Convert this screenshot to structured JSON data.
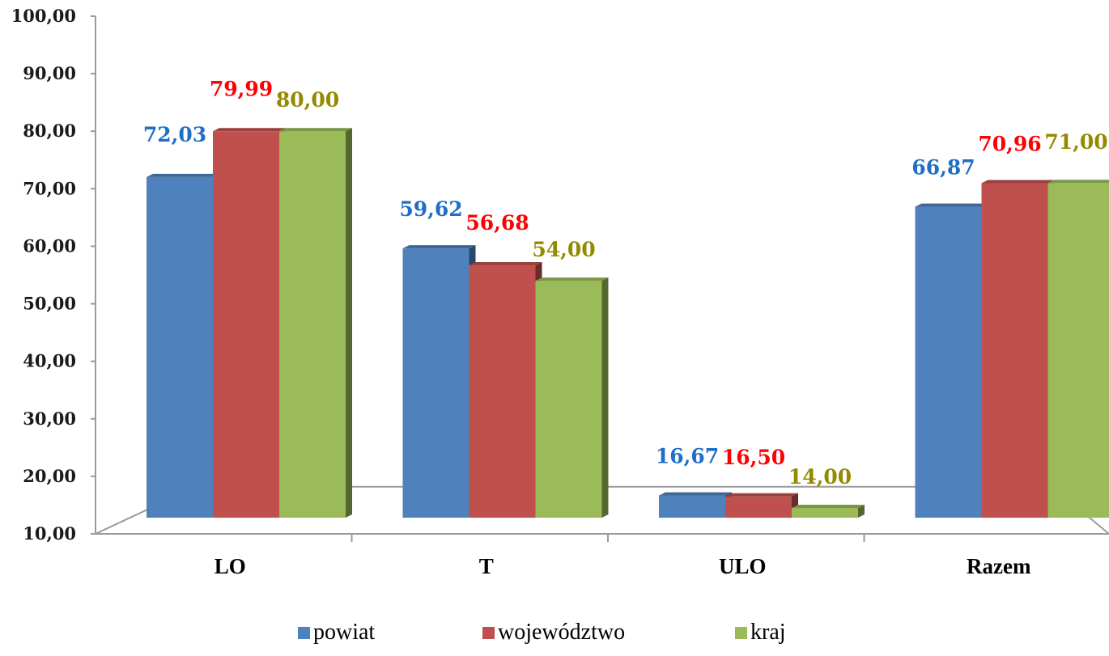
{
  "chart_data": {
    "type": "bar",
    "categories": [
      "LO",
      "T",
      "ULO",
      "Razem"
    ],
    "series": [
      {
        "name": "powiat",
        "values": [
          72.03,
          59.62,
          16.67,
          66.87
        ],
        "labels": [
          "72,03",
          "59,62",
          "16,67",
          "66,87"
        ],
        "color": "#4F81BD",
        "label_color": "#1F6FC5"
      },
      {
        "name": "województwo",
        "values": [
          79.99,
          56.68,
          16.5,
          70.96
        ],
        "labels": [
          "79,99",
          "56,68",
          "16,50",
          "70,96"
        ],
        "color": "#C0504D",
        "label_color": "#FF0000"
      },
      {
        "name": "kraj",
        "values": [
          80.0,
          54.0,
          14.0,
          71.0
        ],
        "labels": [
          "80,00",
          "54,00",
          "14,00",
          "71,00"
        ],
        "color": "#9BBB59",
        "label_color": "#948A00"
      }
    ],
    "ylim": [
      10,
      100
    ],
    "yticks": [
      "10,00",
      "20,00",
      "30,00",
      "40,00",
      "50,00",
      "60,00",
      "70,00",
      "80,00",
      "90,00",
      "100,00"
    ],
    "grid": false,
    "legend_position": "bottom",
    "title": "",
    "xlabel": "",
    "ylabel": ""
  }
}
